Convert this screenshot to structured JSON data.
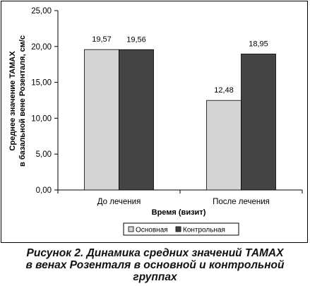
{
  "chart_data": {
    "type": "bar",
    "categories": [
      "До лечения",
      "После лечения"
    ],
    "series": [
      {
        "name": "Основная",
        "values": [
          19.57,
          12.48
        ],
        "labels": [
          "19,57",
          "12,48"
        ],
        "color": "#d4d4d4"
      },
      {
        "name": "Контрольная",
        "values": [
          19.56,
          18.95
        ],
        "labels": [
          "19,56",
          "18,95"
        ],
        "color": "#444444"
      }
    ],
    "xlabel": "Время (визит)",
    "ylabel": [
      "Среднее значение ТАМАХ",
      "в базальной вене Розенталя, см/с"
    ],
    "ylim": [
      0,
      25
    ],
    "yticks": [
      0,
      5,
      10,
      15,
      20,
      25
    ],
    "ytick_labels": [
      "0,00",
      "5,00",
      "10,00",
      "15,00",
      "20,00",
      "25,00"
    ],
    "grid": false,
    "legend_position": "bottom"
  },
  "caption": {
    "line1": "Рисунок 2. Динамика средних значений ТАМАХ",
    "line2": "в венах Розенталя в основной и контрольной",
    "line3": "группах"
  }
}
